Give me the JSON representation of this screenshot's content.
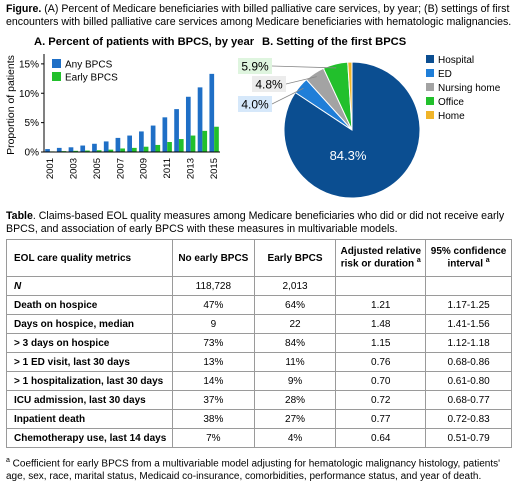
{
  "figure_caption": {
    "label": "Figure.",
    "text": "(A) Percent of Medicare beneficiaries with billed palliative care services, by year; (B) settings of first encounters with billed palliative care services among Medicare beneficiaries with hematologic malignancies."
  },
  "chart_data": [
    {
      "type": "bar",
      "title": "A. Percent of patients with BPCS, by year",
      "ylabel": "Proportion of patients",
      "xlabel": "",
      "ylim": [
        0,
        16
      ],
      "yticks": [
        "0%",
        "5%",
        "10%",
        "15%"
      ],
      "ytick_values": [
        0,
        5,
        10,
        15
      ],
      "categories": [
        "2001",
        "2002",
        "2003",
        "2004",
        "2005",
        "2006",
        "2007",
        "2008",
        "2009",
        "2010",
        "2011",
        "2012",
        "2013",
        "2014",
        "2015"
      ],
      "xtick_labels": [
        "2001",
        "2003",
        "2005",
        "2007",
        "2009",
        "2011",
        "2013",
        "2015"
      ],
      "legend_position": "top-left",
      "series": [
        {
          "name": "Any BPCS",
          "color": "#1f6fc6",
          "values": [
            0.5,
            0.7,
            0.8,
            1.1,
            1.4,
            1.8,
            2.4,
            2.8,
            3.5,
            4.5,
            5.9,
            7.3,
            9.4,
            11.0,
            13.3
          ]
        },
        {
          "name": "Early BPCS",
          "color": "#22c02c",
          "values": [
            0.1,
            0.15,
            0.2,
            0.25,
            0.3,
            0.4,
            0.6,
            0.7,
            0.9,
            1.2,
            1.7,
            2.2,
            2.8,
            3.6,
            4.3
          ]
        }
      ]
    },
    {
      "type": "pie",
      "title": "B. Setting of the first BPCS",
      "slices": [
        {
          "name": "Hospital",
          "value": 84.3,
          "label": "84.3%",
          "color": "#0b4e91"
        },
        {
          "name": "ED",
          "value": 4.0,
          "label": "4.0%",
          "color": "#1f7ed8"
        },
        {
          "name": "Nursing home",
          "value": 4.8,
          "label": "4.8%",
          "color": "#a3a3a3"
        },
        {
          "name": "Office",
          "value": 5.9,
          "label": "5.9%",
          "color": "#22c02c"
        },
        {
          "name": "Home",
          "value": 1.0,
          "label": "",
          "color": "#f0b429"
        }
      ],
      "legend_position": "right"
    }
  ],
  "table_caption": {
    "label": "Table",
    "text": ". Claims-based EOL quality measures among Medicare beneficiaries who did or did not receive early BPCS, and association of early BPCS with these measures in multivariable models."
  },
  "table": {
    "headers": {
      "metric": "EOL care quality metrics",
      "no_early": "No early BPCS",
      "early": "Early BPCS",
      "adjusted": "Adjusted relative risk or duration",
      "adjusted_sup": "a",
      "ci": "95% confidence interval",
      "ci_sup": "a"
    },
    "rows": [
      {
        "metric": "N",
        "no_early": "118,728",
        "early": "2,013",
        "adjusted": "",
        "ci": ""
      },
      {
        "metric": "Death on hospice",
        "no_early": "47%",
        "early": "64%",
        "adjusted": "1.21",
        "ci": "1.17-1.25"
      },
      {
        "metric": "Days on hospice, median",
        "no_early": "9",
        "early": "22",
        "adjusted": "1.48",
        "ci": "1.41-1.56"
      },
      {
        "metric": "> 3 days on hospice",
        "no_early": "73%",
        "early": "84%",
        "adjusted": "1.15",
        "ci": "1.12-1.18"
      },
      {
        "metric": "> 1 ED visit, last 30 days",
        "no_early": "13%",
        "early": "11%",
        "adjusted": "0.76",
        "ci": "0.68-0.86"
      },
      {
        "metric": "> 1 hospitalization, last 30 days",
        "no_early": "14%",
        "early": "9%",
        "adjusted": "0.70",
        "ci": "0.61-0.80"
      },
      {
        "metric": "ICU admission, last 30 days",
        "no_early": "37%",
        "early": "28%",
        "adjusted": "0.72",
        "ci": "0.68-0.77"
      },
      {
        "metric": "Inpatient death",
        "no_early": "38%",
        "early": "27%",
        "adjusted": "0.77",
        "ci": "0.72-0.83"
      },
      {
        "metric": "Chemotherapy use, last 14 days",
        "no_early": "7%",
        "early": "4%",
        "adjusted": "0.64",
        "ci": "0.51-0.79"
      }
    ]
  },
  "footnote": {
    "sup": "a",
    "text": " Coefficient for early BPCS from a multivariable model adjusting for hematologic malignancy histology, patients' age, sex, race, marital status, Medicaid co-insurance, comorbidities, performance status, and year of death."
  }
}
